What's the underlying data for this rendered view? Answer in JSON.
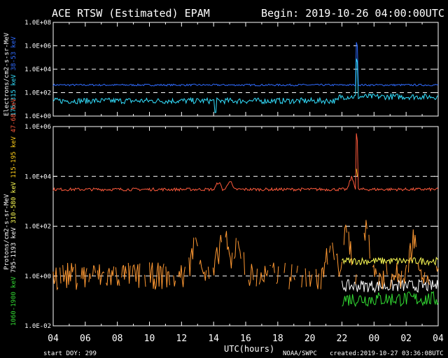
{
  "header": {
    "title": "ACE RTSW (Estimated) EPAM",
    "begin": "Begin: 2019-10-26 04:00:00UTC"
  },
  "footer": {
    "start_doy": "start DOY:  299",
    "xlabel": "UTC(hours)",
    "agency": "NOAA/SWPC",
    "created": "created:2019-10-27 03:36:08UTC"
  },
  "colors": {
    "background": "#000000",
    "axes": "#ffffff",
    "grid_dash": "#ffffff",
    "e38": "#2f6bff",
    "e175": "#33e0ff",
    "p47": "#ff5a3c",
    "p115": "#ffcf1a",
    "p310": "#ffff55",
    "p795": "#ffffff",
    "p1060": "#33dd33",
    "p_low": "#ff9933"
  },
  "chart_data": [
    {
      "type": "line",
      "panel": "electrons",
      "yscale": "log",
      "ylim": [
        1,
        100000000
      ],
      "xlim_hours": [
        4,
        28
      ],
      "y_tick_labels": [
        "1.0E+08",
        "1.0E+06",
        "1.0E+04",
        "1.0E+02",
        "1.0E+00"
      ],
      "ylabel": "Electrons/cm2-s-sr-MeV",
      "grid_dashed_at": [
        1000000,
        10000,
        100
      ],
      "series": [
        {
          "name": "38-53 keV",
          "color": "e38",
          "base": 450,
          "noise": 0.08,
          "spikes": [
            [
              22.92,
              3000000
            ]
          ]
        },
        {
          "name": "175-315 keV",
          "color": "e175",
          "base": 20,
          "noise": 0.25,
          "steps": [
            [
              21.8,
              45
            ]
          ],
          "dips": [
            [
              14.1,
              2
            ]
          ],
          "spikes": [
            [
              22.92,
              120000
            ]
          ]
        }
      ]
    },
    {
      "type": "line",
      "panel": "protons",
      "yscale": "log",
      "ylim": [
        0.01,
        1000000
      ],
      "xlim_hours": [
        4,
        28
      ],
      "y_tick_labels": [
        "1.0E+06",
        "1.0E+04",
        "1.0E+02",
        "1.0E+00",
        "1.0E-02"
      ],
      "ylabel": "Protons/cm2-s-sr-MeV",
      "grid_dashed_at": [
        10000,
        100,
        1
      ],
      "series": [
        {
          "name": "47-68 keV",
          "color": "p47",
          "base": 3000,
          "noise": 0.06,
          "bumps": [
            [
              14.3,
              6000
            ],
            [
              15.0,
              7000
            ],
            [
              22.6,
              9000
            ]
          ],
          "spikes": [
            [
              22.92,
              800000
            ]
          ]
        },
        {
          "name": "115-195 keV",
          "color": "p115",
          "base": 0,
          "spikes": [
            [
              22.92,
              30000
            ]
          ]
        },
        {
          "name": "310-580 keV",
          "color": "p310",
          "base": 4,
          "noise": 0.15,
          "start": 22.0
        },
        {
          "name": "795-1193 keV",
          "color": "p795",
          "base": 0.4,
          "noise": 0.25,
          "start": 22.0
        },
        {
          "name": "1060-1900 keV",
          "color": "p1060",
          "base": 0.12,
          "noise": 0.3,
          "start": 22.0
        },
        {
          "name": "",
          "color": "p_low",
          "base": 1,
          "noise": 0.55,
          "sparse": true,
          "bursts": [
            [
              12.9,
              30
            ],
            [
              14.6,
              80
            ],
            [
              15.5,
              40
            ],
            [
              21.3,
              15
            ],
            [
              22.3,
              60
            ],
            [
              23.5,
              100
            ],
            [
              26.5,
              40
            ]
          ]
        }
      ]
    }
  ],
  "x_ticks": [
    "04",
    "06",
    "08",
    "10",
    "12",
    "14",
    "16",
    "18",
    "20",
    "22",
    "00",
    "02",
    "04"
  ],
  "y_side_labels": {
    "electrons": [
      {
        "text": "Electrons/cm2-s-sr-MeV",
        "color": "axes"
      },
      {
        "text": "175-315 keV",
        "color": "e175"
      },
      {
        "text": "38-53 keV",
        "color": "e38"
      }
    ],
    "protons": [
      {
        "text": "1060-1900 keV",
        "color": "p1060"
      },
      {
        "text": "795-1193 keV",
        "color": "p795"
      },
      {
        "text": "310-580 keV",
        "color": "p310"
      },
      {
        "text": "115-195 keV",
        "color": "p115"
      },
      {
        "text": "47-68 keV",
        "color": "p47"
      },
      {
        "text": "Protons/cm2-s-sr-MeV",
        "color": "axes"
      }
    ]
  }
}
